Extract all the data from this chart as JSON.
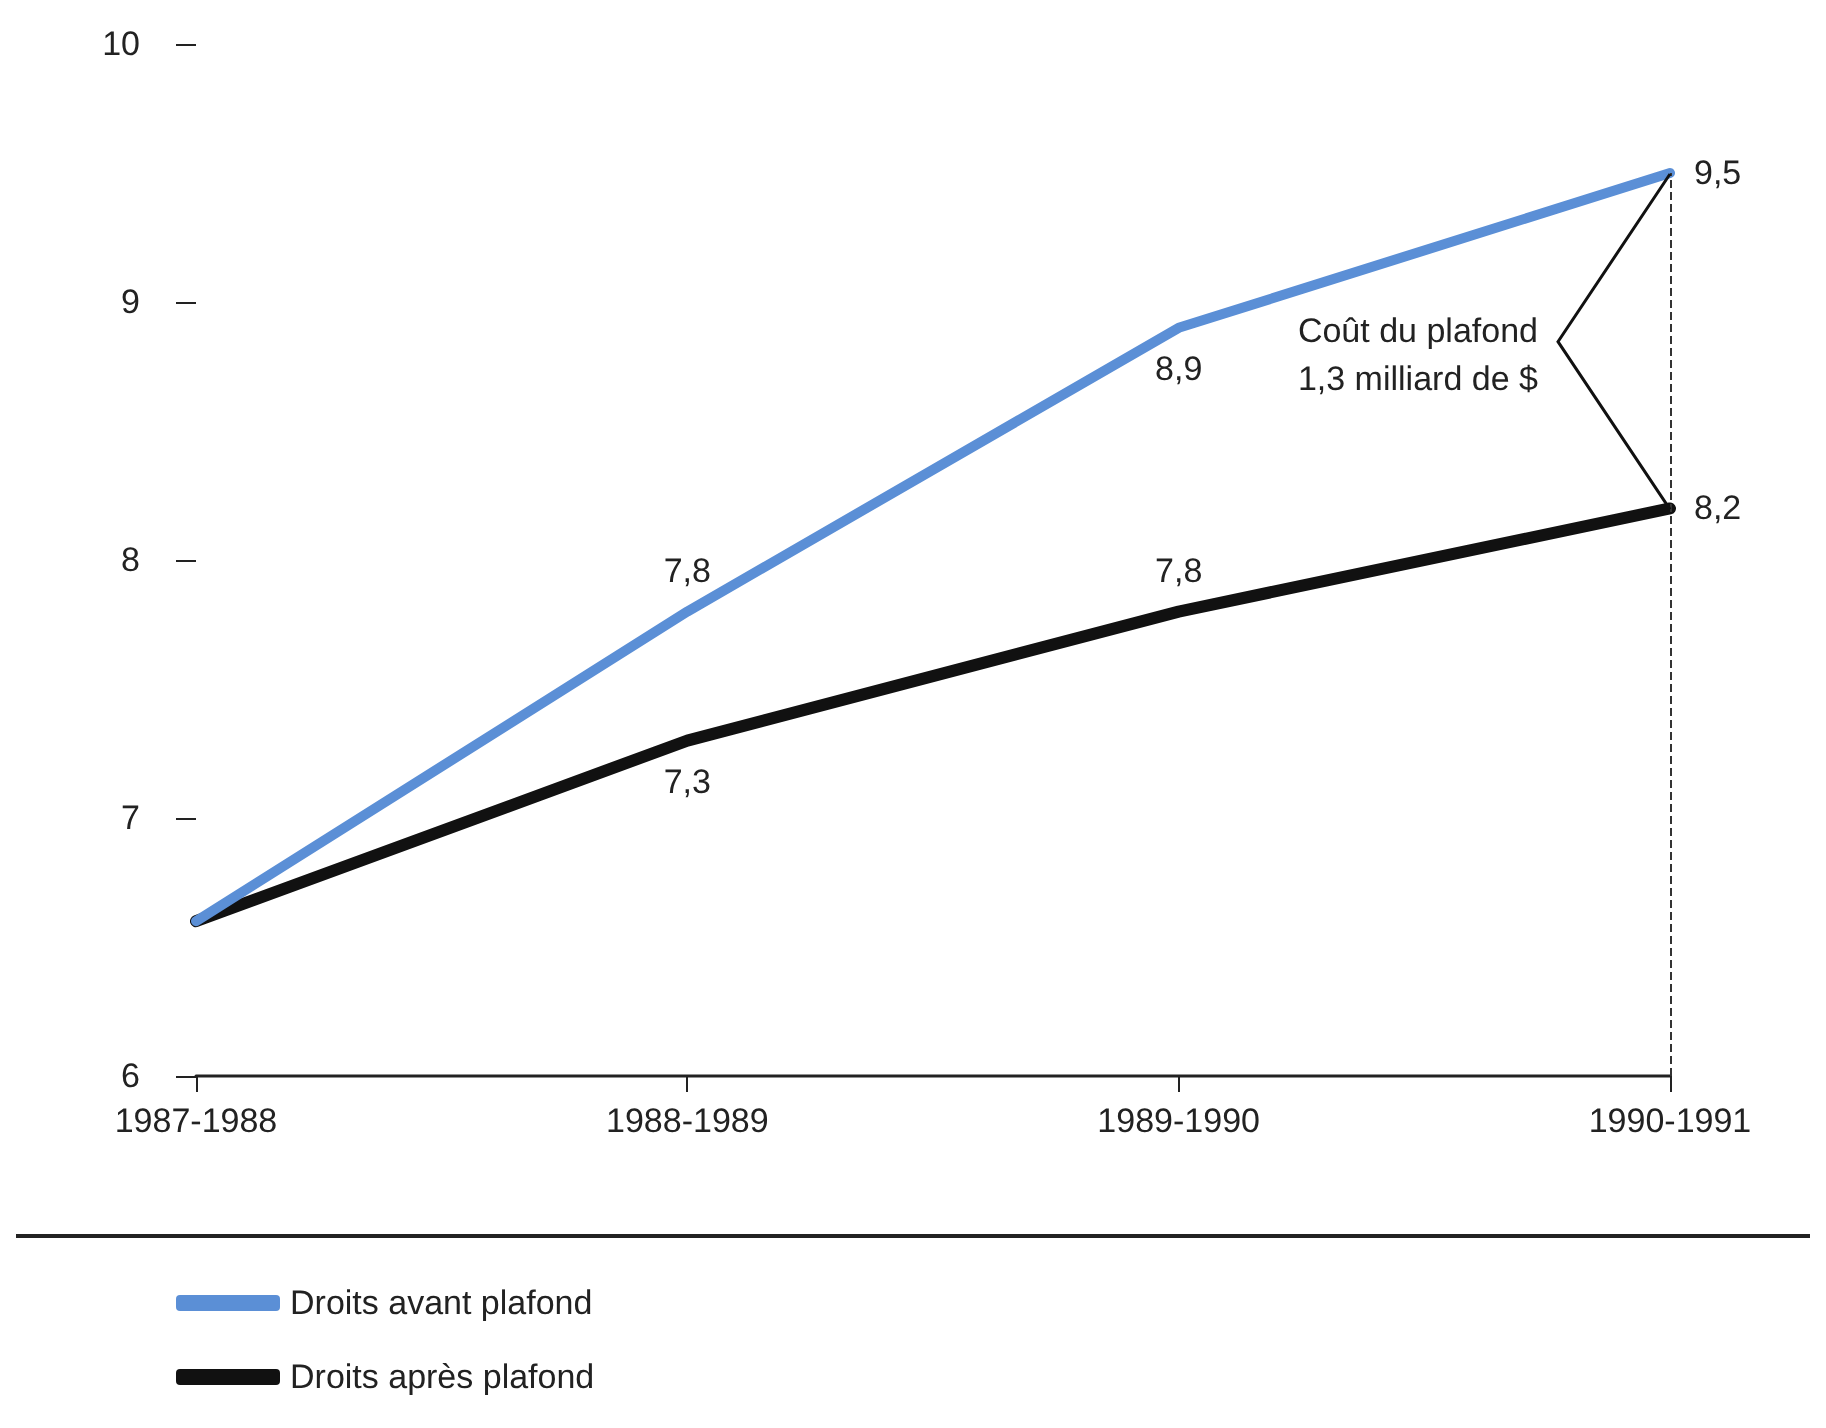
{
  "chart_data": {
    "type": "line",
    "categories": [
      "1987-1988",
      "1988-1989",
      "1989-1990",
      "1990-1991"
    ],
    "series": [
      {
        "name": "Droits avant plafond",
        "color": "#5b8fd6",
        "values": [
          6.6,
          7.8,
          8.9,
          9.5
        ],
        "value_labels": [
          null,
          "7,8",
          "8,9",
          "9,5"
        ]
      },
      {
        "name": "Droits après plafond",
        "color": "#111111",
        "values": [
          6.6,
          7.3,
          7.8,
          8.2
        ],
        "value_labels": [
          null,
          "7,3",
          "7,8",
          "8,2"
        ]
      }
    ],
    "ylim": [
      6,
      10
    ],
    "yticks": [
      6,
      7,
      8,
      9,
      10
    ],
    "grid": false,
    "legend": "bottom left",
    "marker": "none",
    "line_style": "solid",
    "ref_lines": [
      {
        "axis": "x",
        "value": "1990-1991",
        "line_style": "dashed",
        "color": "#333333"
      }
    ],
    "annotations": [
      "Coût du plafond\n1,3 milliard de $"
    ]
  }
}
